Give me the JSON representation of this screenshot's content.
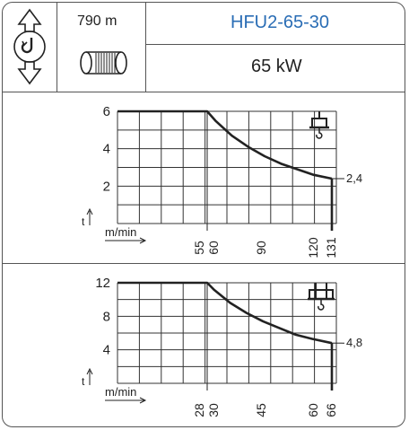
{
  "header": {
    "rope_length": "790 m",
    "model": "HFU2-65-30",
    "power": "65 kW",
    "icons": {
      "hoist_direction": "up-down-rotation-arrows-icon",
      "rope_drum": "rope-drum-icon"
    }
  },
  "chart_data": [
    {
      "type": "line",
      "ylabel": "t",
      "xlabel": "m/min",
      "y_ticks": [
        "6",
        "4",
        "2"
      ],
      "x_ticks": [
        "55",
        "60",
        "90",
        "120",
        "131"
      ],
      "end_label": "2,4",
      "ylim": [
        0,
        6
      ],
      "icon": "single-hook-block-icon",
      "x": [
        55,
        60,
        70,
        80,
        90,
        100,
        110,
        120,
        131
      ],
      "y": [
        6,
        5.5,
        4.7,
        4.1,
        3.6,
        3.2,
        2.9,
        2.6,
        2.4
      ]
    },
    {
      "type": "line",
      "ylabel": "t",
      "xlabel": "m/min",
      "y_ticks": [
        "12",
        "8",
        "4"
      ],
      "x_ticks": [
        "28",
        "30",
        "45",
        "60",
        "66"
      ],
      "end_label": "4,8",
      "ylim": [
        0,
        12
      ],
      "icon": "double-hook-block-icon",
      "x": [
        28,
        30,
        35,
        40,
        45,
        50,
        55,
        60,
        66
      ],
      "y": [
        12,
        11.2,
        9.6,
        8.4,
        7.4,
        6.6,
        5.8,
        5.3,
        4.8
      ]
    }
  ]
}
